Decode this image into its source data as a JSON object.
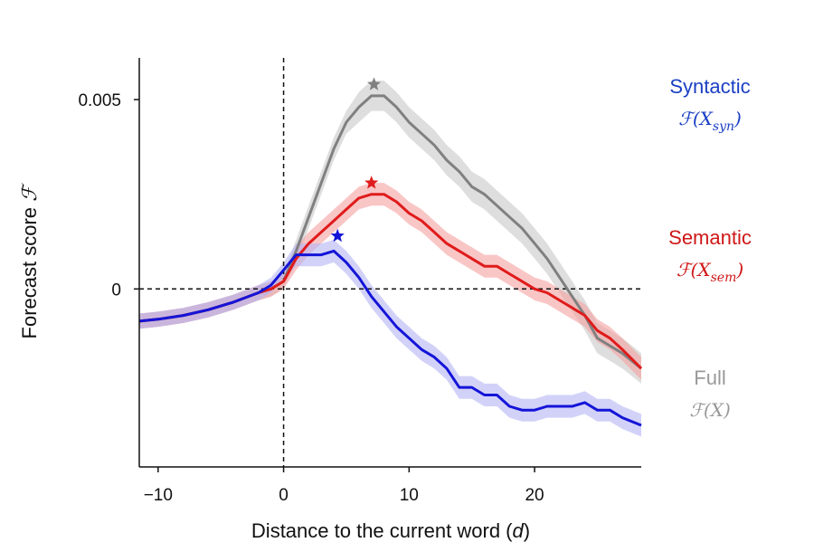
{
  "chart_data": {
    "type": "line",
    "xlabel": "Distance to the current word (",
    "xlabel_var": "d",
    "xlabel_end": ")",
    "ylabel": "Forecast score",
    "ylabel_symbol": "ℱ",
    "xlim": [
      -11.5,
      28.5
    ],
    "ylim": [
      -0.0047,
      0.0061
    ],
    "x_ticks": [
      {
        "value": -10,
        "label": "−10"
      },
      {
        "value": 0,
        "label": "0"
      },
      {
        "value": 10,
        "label": "10"
      },
      {
        "value": 20,
        "label": "20"
      }
    ],
    "y_ticks": [
      {
        "value": 0,
        "label": "0"
      },
      {
        "value": 0.005,
        "label": "0.005"
      }
    ],
    "reference_lines": {
      "x": 0,
      "y": 0,
      "style": "dashed"
    },
    "x": [
      -11.5,
      -10,
      -8,
      -6,
      -4,
      -2,
      -1,
      0,
      1,
      2,
      3,
      4,
      5,
      6,
      7,
      8,
      9,
      10,
      11,
      12,
      13,
      14,
      15,
      16,
      17,
      18,
      19,
      20,
      21,
      22,
      23,
      24,
      25,
      26,
      27,
      28.5
    ],
    "series": [
      {
        "name": "Full",
        "formula": "ℱ(X)",
        "color": "#808080",
        "band_color": "#c8c8c8",
        "values": [
          -0.00085,
          -0.0008,
          -0.0007,
          -0.00055,
          -0.00035,
          -0.0001,
          0,
          0.0002,
          0.001,
          0.0019,
          0.0028,
          0.0037,
          0.0044,
          0.0048,
          0.0051,
          0.0051,
          0.0048,
          0.0044,
          0.0041,
          0.0038,
          0.0034,
          0.0031,
          0.0027,
          0.0025,
          0.0022,
          0.0019,
          0.0016,
          0.0012,
          0.0008,
          0.0003,
          -0.0002,
          -0.0007,
          -0.0013,
          -0.0015,
          -0.0017,
          -0.0021
        ],
        "band": [
          0.0002,
          0.0002,
          0.0002,
          0.0002,
          0.0002,
          0.0002,
          0.0002,
          0.0002,
          0.0003,
          0.0003,
          0.0003,
          0.0003,
          0.0003,
          0.0004,
          0.0004,
          0.0004,
          0.0004,
          0.0004,
          0.0004,
          0.0004,
          0.0004,
          0.0004,
          0.0004,
          0.0004,
          0.0004,
          0.0004,
          0.0004,
          0.0004,
          0.0004,
          0.0004,
          0.0004,
          0.0004,
          0.0004,
          0.0004,
          0.0004,
          0.0004
        ],
        "peak": {
          "x": 7.2,
          "y": 0.0054
        }
      },
      {
        "name": "Semantic",
        "formula": "ℱ(X",
        "formula_sub": "sem",
        "formula_end": ")",
        "color": "#e01b1b",
        "band_color": "#f5a0a0",
        "values": [
          -0.00085,
          -0.0008,
          -0.0007,
          -0.00055,
          -0.00035,
          -0.0001,
          0,
          0.0002,
          0.0008,
          0.0012,
          0.0015,
          0.0018,
          0.0021,
          0.0024,
          0.0025,
          0.0025,
          0.0023,
          0.002,
          0.0018,
          0.0015,
          0.0012,
          0.001,
          0.0008,
          0.0006,
          0.0006,
          0.0004,
          0.0002,
          0,
          -0.0001,
          -0.0003,
          -0.0005,
          -0.0007,
          -0.0011,
          -0.0013,
          -0.0016,
          -0.0021
        ],
        "band": [
          0.0002,
          0.0002,
          0.0002,
          0.0002,
          0.0002,
          0.0002,
          0.0002,
          0.0002,
          0.0003,
          0.0003,
          0.0003,
          0.0003,
          0.0003,
          0.0003,
          0.0003,
          0.0003,
          0.0003,
          0.0003,
          0.0003,
          0.0003,
          0.0003,
          0.0003,
          0.0003,
          0.0003,
          0.0003,
          0.0003,
          0.0003,
          0.0003,
          0.0003,
          0.0003,
          0.0003,
          0.0003,
          0.0003,
          0.0003,
          0.0003,
          0.0003
        ],
        "peak": {
          "x": 7,
          "y": 0.0028
        }
      },
      {
        "name": "Syntactic",
        "formula": "ℱ(X",
        "formula_sub": "syn",
        "formula_end": ")",
        "color": "#1414d8",
        "band_color": "#b4b4f5",
        "values": [
          -0.00085,
          -0.0008,
          -0.0007,
          -0.00055,
          -0.00035,
          -0.0001,
          0.0001,
          0.0005,
          0.0009,
          0.0009,
          0.0009,
          0.001,
          0.0007,
          0.0003,
          -0.0002,
          -0.0006,
          -0.001,
          -0.0013,
          -0.0016,
          -0.0018,
          -0.0021,
          -0.0026,
          -0.0026,
          -0.0028,
          -0.0028,
          -0.0031,
          -0.0032,
          -0.0032,
          -0.0031,
          -0.0031,
          -0.0031,
          -0.003,
          -0.0032,
          -0.0032,
          -0.0034,
          -0.0036
        ],
        "band": [
          0.0002,
          0.0002,
          0.0002,
          0.0002,
          0.0002,
          0.0002,
          0.0002,
          0.0002,
          0.0003,
          0.0003,
          0.0003,
          0.0003,
          0.0003,
          0.0003,
          0.0003,
          0.0003,
          0.0003,
          0.0003,
          0.0003,
          0.0003,
          0.0003,
          0.0003,
          0.0003,
          0.0003,
          0.0003,
          0.0003,
          0.0003,
          0.0003,
          0.0003,
          0.0003,
          0.0003,
          0.0003,
          0.0003,
          0.0003,
          0.0003,
          0.0003
        ],
        "peak": {
          "x": 4.3,
          "y": 0.0014
        }
      }
    ],
    "legend_position": "right"
  }
}
